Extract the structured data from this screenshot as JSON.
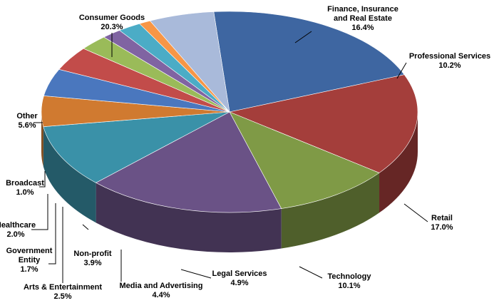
{
  "chart_data": {
    "type": "pie",
    "style": "3d-pie",
    "slices": [
      {
        "label": [
          "Consumer Goods"
        ],
        "value": 20.3,
        "display": "20.3%",
        "color": "#3E66A1"
      },
      {
        "label": [
          "Finance, Insurance",
          "and Real Estate"
        ],
        "value": 16.4,
        "display": "16.4%",
        "color": "#A43E3B"
      },
      {
        "label": [
          "Professional Services"
        ],
        "value": 10.2,
        "display": "10.2%",
        "color": "#7F9A46"
      },
      {
        "label": [
          "Retail"
        ],
        "value": 17.0,
        "display": "17.0%",
        "color": "#6A5286"
      },
      {
        "label": [
          "Technology"
        ],
        "value": 10.1,
        "display": "10.1%",
        "color": "#3A91A8"
      },
      {
        "label": [
          "Legal Services"
        ],
        "value": 4.9,
        "display": "4.9%",
        "color": "#D07A30"
      },
      {
        "label": [
          "Media and Advertising"
        ],
        "value": 4.4,
        "display": "4.4%",
        "color": "#4A77BE"
      },
      {
        "label": [
          "Non-profit"
        ],
        "value": 3.9,
        "display": "3.9%",
        "color": "#C24C4A"
      },
      {
        "label": [
          "Arts & Entertainment"
        ],
        "value": 2.5,
        "display": "2.5%",
        "color": "#9ABB59"
      },
      {
        "label": [
          "Government",
          "Entity"
        ],
        "value": 1.7,
        "display": "1.7%",
        "color": "#8064A2"
      },
      {
        "label": [
          "Healthcare"
        ],
        "value": 2.0,
        "display": "2.0%",
        "color": "#4BACC6"
      },
      {
        "label": [
          "Broadcast"
        ],
        "value": 1.0,
        "display": "1.0%",
        "color": "#F79646"
      },
      {
        "label": [
          "Other"
        ],
        "value": 5.6,
        "display": "5.6%",
        "color": "#A9BADA"
      }
    ]
  }
}
